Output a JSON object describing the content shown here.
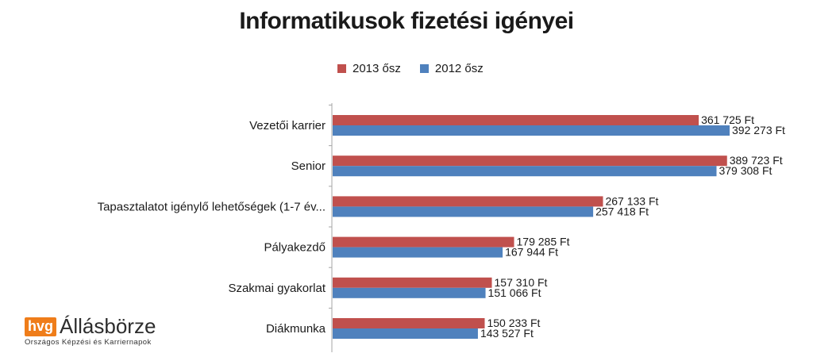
{
  "chart_data": {
    "type": "bar",
    "orientation": "horizontal",
    "title": "Informatikusok fizetési igényei",
    "categories": [
      "Vezetői karrier",
      "Senior",
      "Tapasztalatot igénylő lehetőségek (1-7 év...",
      "Pályakezdő",
      "Szakmai gyakorlat",
      "Diákmunka"
    ],
    "series": [
      {
        "name": "2013 ősz",
        "color": "#c0504d",
        "values": [
          361725,
          389723,
          267133,
          179285,
          157310,
          150233
        ],
        "labels": [
          "361 725 Ft",
          "389 723 Ft",
          "267 133 Ft",
          "179 285 Ft",
          "157 310 Ft",
          "150 233 Ft"
        ]
      },
      {
        "name": "2012 ősz",
        "color": "#4f81bd",
        "values": [
          392273,
          379308,
          257418,
          167944,
          151066,
          143527
        ],
        "labels": [
          "392 273 Ft",
          "379 308 Ft",
          "257 418 Ft",
          "167 944 Ft",
          "151 066 Ft",
          "143 527 Ft"
        ]
      }
    ],
    "xlim": [
      0,
      392273
    ],
    "legend_position": "top",
    "grid": false
  },
  "logo": {
    "badge": "hvg",
    "brand": "Állásbörze",
    "tagline": "Országos Képzési és Karriernapok"
  }
}
